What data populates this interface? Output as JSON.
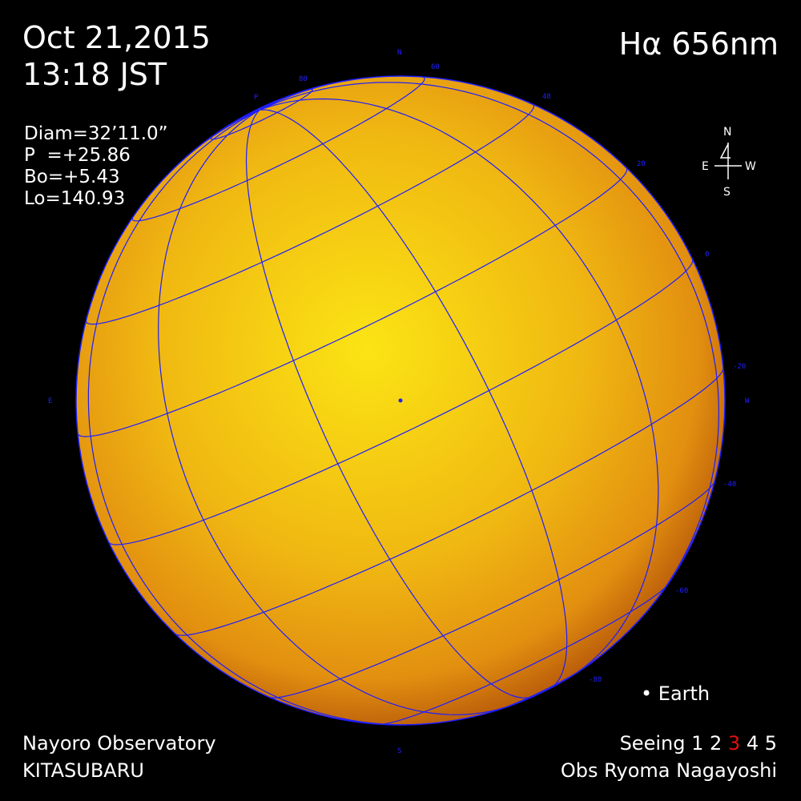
{
  "header": {
    "date": "Oct 21,2015",
    "time": "13:18 JST",
    "wavelength": "Hα 656nm"
  },
  "parameters": {
    "diam": "Diam=32’11.0”",
    "p": "P  =+25.86",
    "bo": "Bo=+5.43",
    "lo": "Lo=140.93",
    "p_value": 25.86,
    "bo_value": 5.43
  },
  "compass": {
    "n": "N",
    "s": "S",
    "e": "E",
    "w": "W"
  },
  "grid_labels": {
    "n": "N",
    "s": "S",
    "e": "E",
    "w": "W",
    "p": "P",
    "lat": [
      "80",
      "60",
      "40",
      "20",
      "0",
      "-20",
      "-40",
      "-60",
      "-80"
    ]
  },
  "legend": {
    "earth": "• Earth"
  },
  "footer": {
    "observatory": "Nayoro Observatory",
    "telescope": "KITASUBARU",
    "seeing_label": "Seeing",
    "seeing_values": [
      "1",
      "2",
      "3",
      "4",
      "5"
    ],
    "seeing_selected": 3,
    "observer": "Obs Ryoma Nagayoshi"
  },
  "colors": {
    "grid": "#1e1eff",
    "seeing_selected": "#e01010",
    "sun_center": "#f8e010",
    "sun_edge": "#d9820e"
  }
}
